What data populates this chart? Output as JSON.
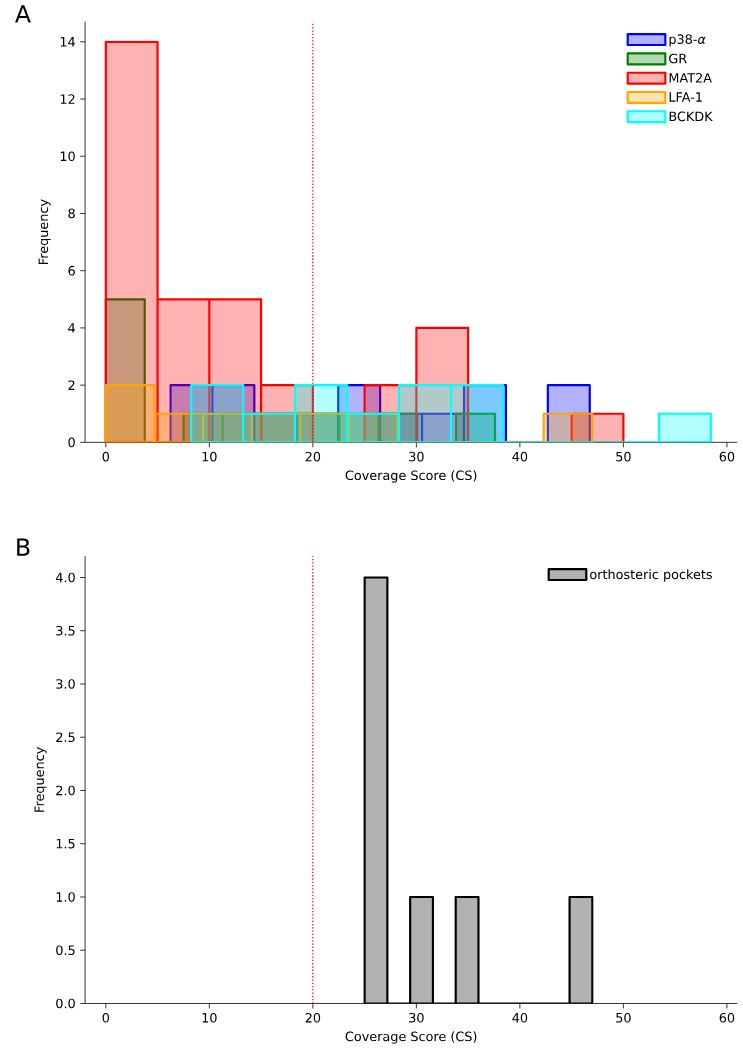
{
  "chart_data": [
    {
      "type": "histogram",
      "xlabel": "Coverage Score (CS)",
      "ylabel": "Frequency",
      "annotations": [
        "A"
      ],
      "legend": "top right",
      "xlim": [
        -2,
        61
      ],
      "ylim": [
        0,
        14.7
      ],
      "xticks": [
        0,
        10,
        20,
        30,
        40,
        50,
        60
      ],
      "yticks": [
        0,
        2,
        4,
        6,
        8,
        10,
        12,
        14
      ],
      "ref_lines": [
        {
          "axis": "x",
          "value": 20,
          "color": "#ff0000",
          "line_style": "dotted"
        }
      ],
      "series": [
        {
          "name": "p38-*α*",
          "color": "#0000ff",
          "bins": [
            6.25,
            10.3,
            14.35,
            18.4,
            22.45,
            26.5,
            30.55,
            34.6,
            38.65,
            42.7,
            46.75
          ],
          "values": [
            2,
            2,
            1,
            1,
            2,
            1,
            1,
            2,
            0,
            2
          ]
        },
        {
          "name": "GR",
          "color": "#008000",
          "bins": [
            0,
            3.76,
            7.52,
            11.28,
            15.04,
            18.8,
            22.56,
            26.32,
            30.08,
            33.84,
            37.6
          ],
          "values": [
            5,
            0,
            1,
            1,
            1,
            1,
            1,
            1,
            0,
            1
          ]
        },
        {
          "name": "MAT2A",
          "color": "#ff0000",
          "values": [
            14,
            5,
            5,
            2,
            0,
            2,
            4,
            0,
            0,
            1
          ]
        },
        {
          "name": "LFA-1",
          "color": "#ffa500",
          "bins": [
            0,
            4.7,
            9.4,
            14.1,
            18.8,
            23.5,
            28.2,
            32.9,
            37.6,
            42.3,
            47
          ],
          "values": [
            2,
            1,
            1,
            1,
            1,
            1,
            0,
            0,
            0,
            1
          ]
        },
        {
          "name": "BCKDK",
          "color": "#00ffff",
          "bins": [
            8.25,
            13.27,
            18.29,
            23.31,
            28.33,
            33.35,
            38.37,
            43.39,
            48.41,
            53.43,
            58.45
          ],
          "values": [
            2,
            1,
            2,
            1,
            2,
            2,
            0,
            0,
            0,
            1
          ]
        }
      ],
      "bins": [
        0,
        5,
        10,
        15,
        20,
        25,
        30,
        35,
        40,
        45,
        50
      ]
    },
    {
      "type": "histogram",
      "xlabel": "Coverage Score (CS)",
      "ylabel": "Frequency",
      "annotations": [
        "B"
      ],
      "legend": "top right",
      "xlim": [
        -2,
        61
      ],
      "ylim": [
        0,
        4.2
      ],
      "xticks": [
        0,
        10,
        20,
        30,
        40,
        50,
        60
      ],
      "yticks": [
        {
          "value": 0,
          "label": "0.0"
        },
        {
          "value": 0.5,
          "label": "0.5"
        },
        {
          "value": 1,
          "label": "1.0"
        },
        {
          "value": 1.5,
          "label": "1.5"
        },
        {
          "value": 2,
          "label": "2.0"
        },
        {
          "value": 2.5,
          "label": "2.5"
        },
        {
          "value": 3,
          "label": "3.0"
        },
        {
          "value": 3.5,
          "label": "3.5"
        },
        {
          "value": 4,
          "label": "4.0"
        }
      ],
      "ref_lines": [
        {
          "axis": "x",
          "value": 20,
          "color": "#ff0000",
          "line_style": "dotted"
        }
      ],
      "series": [
        {
          "name": "orthosteric pockets",
          "color": "#000000",
          "values": [
            4,
            0,
            1,
            0,
            1,
            0,
            0,
            0,
            0,
            1
          ]
        }
      ],
      "bins": [
        25,
        27.2,
        29.4,
        31.6,
        33.8,
        36,
        38.2,
        40.4,
        42.6,
        44.8,
        47
      ]
    }
  ]
}
